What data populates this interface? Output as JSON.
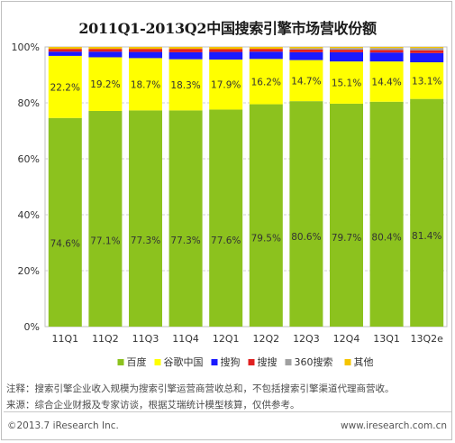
{
  "chart_data": {
    "type": "bar",
    "stacked": true,
    "title": "2011Q1-2013Q2中国搜索引擎市场营收份额",
    "categories": [
      "11Q1",
      "11Q2",
      "11Q3",
      "11Q4",
      "12Q1",
      "12Q2",
      "12Q3",
      "12Q4",
      "13Q1",
      "13Q2e"
    ],
    "yticks": [
      "0%",
      "20%",
      "40%",
      "60%",
      "80%",
      "100%"
    ],
    "ylim": [
      0,
      100
    ],
    "legend_position": "bottom",
    "grid": true,
    "series": [
      {
        "name": "百度",
        "color": "#8cc21e",
        "values": [
          74.6,
          77.1,
          77.3,
          77.3,
          77.6,
          79.5,
          80.6,
          79.7,
          80.4,
          81.4
        ],
        "labels": [
          "74.6%",
          "77.1%",
          "77.3%",
          "77.3%",
          "77.6%",
          "79.5%",
          "80.6%",
          "79.7%",
          "80.4%",
          "81.4%"
        ]
      },
      {
        "name": "谷歌中国",
        "color": "#ffff00",
        "values": [
          22.2,
          19.2,
          18.7,
          18.3,
          17.9,
          16.2,
          14.7,
          15.1,
          14.4,
          13.1
        ],
        "labels": [
          "22.2%",
          "19.2%",
          "18.7%",
          "18.3%",
          "17.9%",
          "16.2%",
          "14.7%",
          "15.1%",
          "14.4%",
          "13.1%"
        ]
      },
      {
        "name": "搜狗",
        "color": "#1a1aff",
        "values": [
          1.5,
          2.0,
          2.2,
          2.5,
          2.7,
          2.6,
          2.8,
          3.3,
          3.2,
          3.3
        ]
      },
      {
        "name": "搜搜",
        "color": "#e02020",
        "values": [
          1.0,
          1.0,
          1.1,
          1.2,
          1.0,
          1.0,
          1.0,
          0.9,
          0.9,
          1.0
        ]
      },
      {
        "name": "360搜索",
        "color": "#a0a0a0",
        "values": [
          0,
          0,
          0,
          0,
          0,
          0,
          0.4,
          0.6,
          0.7,
          0.8
        ]
      },
      {
        "name": "其他",
        "color": "#f5c400",
        "values": [
          0.7,
          0.7,
          0.7,
          0.7,
          0.8,
          0.7,
          0.5,
          0.4,
          0.4,
          0.4
        ]
      }
    ]
  },
  "notes": {
    "line1": "注释：搜索引擎企业收入规模为搜索引擎运营商营收总和，不包括搜索引擎渠道代理商营收。",
    "line2": "来源：综合企业财报及专家访谈，根据艾瑞统计模型核算，仅供参考。"
  },
  "footer": {
    "copyright": "©2013.7 iResearch Inc.",
    "website": "www.iresearch.com.cn"
  }
}
